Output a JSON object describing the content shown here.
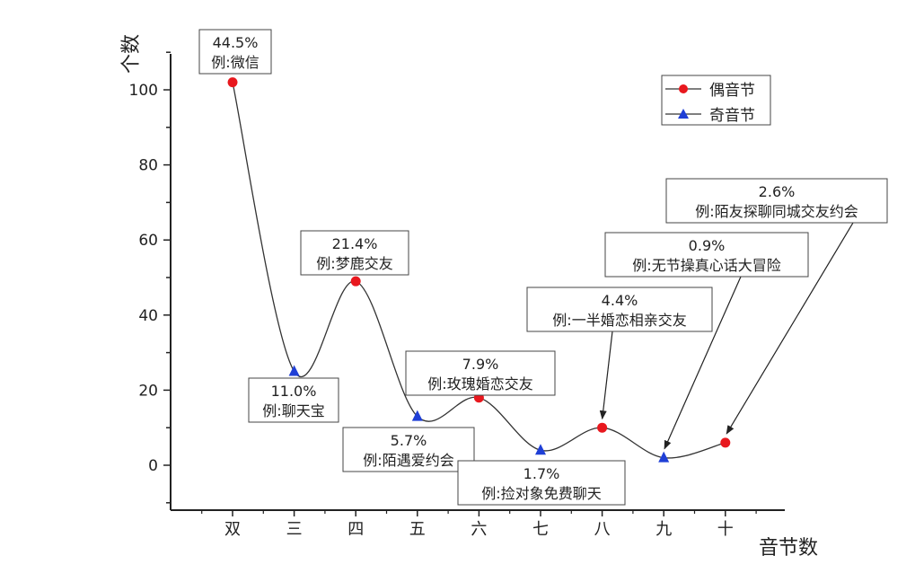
{
  "chart_data": {
    "type": "line",
    "x_axis_label": "音节数",
    "y_axis_label": "个数",
    "categories": [
      "双",
      "三",
      "四",
      "五",
      "六",
      "七",
      "八",
      "九",
      "十"
    ],
    "y_ticks": [
      0,
      20,
      40,
      60,
      80,
      100
    ],
    "ylim": [
      -10,
      110
    ],
    "grid": false,
    "legend_placement": "top-right",
    "series": [
      {
        "name": "偶音节",
        "marker": "circle",
        "color": "#e8181e",
        "x": [
          "双",
          "四",
          "六",
          "八",
          "十"
        ],
        "values": [
          102,
          49,
          18,
          10,
          6
        ]
      },
      {
        "name": "奇音节",
        "marker": "triangle",
        "color": "#1f3fd6",
        "x": [
          "三",
          "五",
          "七",
          "九"
        ],
        "values": [
          25,
          13,
          4,
          2
        ]
      }
    ],
    "curve_values": [
      102,
      25,
      49,
      13,
      18,
      4,
      10,
      2,
      6
    ],
    "annotations": [
      {
        "category": "双",
        "percent": "44.5%",
        "example": "例:微信"
      },
      {
        "category": "三",
        "percent": "11.0%",
        "example": "例:聊天宝"
      },
      {
        "category": "四",
        "percent": "21.4%",
        "example": "例:梦鹿交友"
      },
      {
        "category": "五",
        "percent": "5.7%",
        "example": "例:陌遇爱约会"
      },
      {
        "category": "六",
        "percent": "7.9%",
        "example": "例:玫瑰婚恋交友"
      },
      {
        "category": "七",
        "percent": "1.7%",
        "example": "例:捡对象免费聊天"
      },
      {
        "category": "八",
        "percent": "4.4%",
        "example": "例:一半婚恋相亲交友"
      },
      {
        "category": "九",
        "percent": "0.9%",
        "example": "例:无节操真心话大冒险"
      },
      {
        "category": "十",
        "percent": "2.6%",
        "example": "例:陌友探聊同城交友约会"
      }
    ]
  }
}
